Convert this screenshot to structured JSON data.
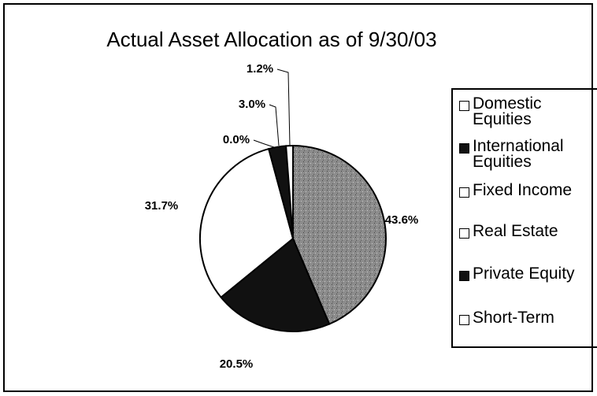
{
  "chart_data": {
    "type": "pie",
    "title": "Actual Asset Allocation as of 9/30/03",
    "categories": [
      "Domestic Equities",
      "International Equities",
      "Fixed Income",
      "Real Estate",
      "Private Equity",
      "Short-Term"
    ],
    "values": [
      43.6,
      20.5,
      31.7,
      0.0,
      3.0,
      1.2
    ],
    "value_labels": [
      "43.6%",
      "20.5%",
      "31.7%",
      "0.0%",
      "3.0%",
      "1.2%"
    ],
    "colors": [
      "#8c8c8c",
      "#111111",
      "#ffffff",
      "#ffffff",
      "#111111",
      "#ffffff"
    ]
  }
}
